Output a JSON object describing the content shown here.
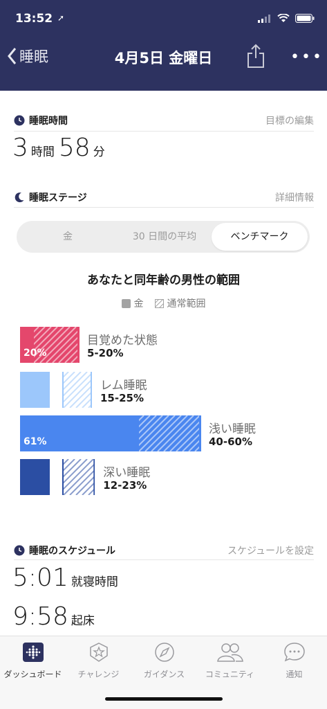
{
  "status": {
    "time": "13:52",
    "location_icon": "location-arrow-icon"
  },
  "nav": {
    "back_label": "睡眠",
    "title": "4月5日 金曜日"
  },
  "sleep_time": {
    "title": "睡眠時間",
    "action": "目標の編集",
    "hours": "3",
    "hours_unit": "時間",
    "minutes": "58",
    "minutes_unit": "分"
  },
  "stages": {
    "title": "睡眠ステージ",
    "action": "詳細情報",
    "tabs": [
      "金",
      "30 日間の平均",
      "ベンチマーク"
    ],
    "active_tab": 2,
    "benchmark_title": "あなたと同年齢の男性の範囲",
    "legend": {
      "actual": "金",
      "range": "通常範囲"
    },
    "items": [
      {
        "name": "目覚めた状態",
        "range": "5-20%",
        "value_label": "20%",
        "value": 20,
        "range_min": 5,
        "range_max": 20,
        "color": "#e4476c",
        "hatch_color": "#e4476c"
      },
      {
        "name": "レム睡眠",
        "range": "15-25%",
        "value_label": "",
        "value": 10,
        "range_min": 15,
        "range_max": 25,
        "color": "#9cc7fb",
        "hatch_color": "#9cc7fb"
      },
      {
        "name": "浅い睡眠",
        "range": "40-60%",
        "value_label": "61%",
        "value": 61,
        "range_min": 40,
        "range_max": 60,
        "color": "#4a86ef",
        "hatch_color": "#4a86ef"
      },
      {
        "name": "深い睡眠",
        "range": "12-23%",
        "value_label": "",
        "value": 10,
        "range_min": 12,
        "range_max": 23,
        "color": "#2b4ea3",
        "hatch_color": "#2b4ea3"
      }
    ]
  },
  "schedule": {
    "title": "睡眠のスケジュール",
    "action": "スケジュールを設定",
    "bedtime": "5:01",
    "bedtime_label": "就寝時間",
    "wake": "9:58",
    "wake_label": "起床"
  },
  "tabbar": {
    "items": [
      {
        "label": "ダッシュボード",
        "icon": "dashboard-icon"
      },
      {
        "label": "チャレンジ",
        "icon": "challenge-star-icon"
      },
      {
        "label": "ガイダンス",
        "icon": "compass-icon"
      },
      {
        "label": "コミュニティ",
        "icon": "community-icon"
      },
      {
        "label": "通知",
        "icon": "chat-bubble-icon"
      }
    ],
    "active": 0
  }
}
